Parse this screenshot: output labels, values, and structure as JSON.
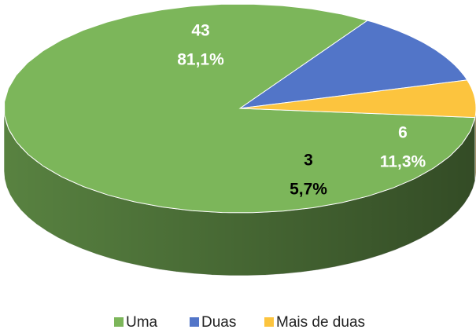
{
  "chart_data": {
    "type": "pie3d",
    "categories": [
      "Uma",
      "Duas",
      "Mais de duas"
    ],
    "values": [
      43,
      6,
      3
    ],
    "percentages": [
      81.1,
      11.3,
      5.7
    ],
    "percentage_labels": [
      "81,1%",
      "11,3%",
      "5,7%"
    ],
    "colors": [
      "#7cb65a",
      "#5275c8",
      "#fcc43e"
    ],
    "legend": "bottom"
  }
}
